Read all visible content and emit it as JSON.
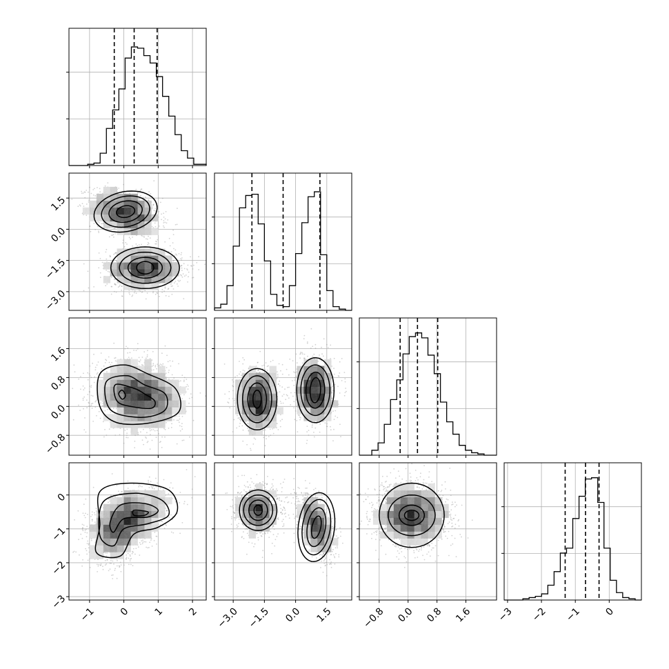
{
  "chart_data": {
    "type": "corner",
    "title": "",
    "parameters": [
      {
        "range": [
          -1.6,
          2.4
        ],
        "ticks": [
          -1,
          0,
          1,
          2
        ],
        "tick_labels": [
          "−1",
          "0",
          "1",
          "2"
        ],
        "quantiles": [
          -0.28,
          0.3,
          0.97
        ]
      },
      {
        "range": [
          -3.9,
          2.7
        ],
        "ticks": [
          -3.0,
          -1.5,
          0.0,
          1.5
        ],
        "tick_labels": [
          "−3.0",
          "−1.5",
          "0.0",
          "1.5"
        ],
        "quantiles": [
          -2.1,
          -0.6,
          1.17
        ]
      },
      {
        "range": [
          -1.35,
          2.45
        ],
        "ticks": [
          -0.8,
          0.0,
          0.8,
          1.6
        ],
        "tick_labels": [
          "−0.8",
          "0.0",
          "0.8",
          "1.6"
        ],
        "quantiles": [
          -0.22,
          0.26,
          0.82
        ]
      },
      {
        "range": [
          -3.1,
          0.95
        ],
        "ticks": [
          -3,
          -2,
          -1,
          0
        ],
        "tick_labels": [
          "−3",
          "−2",
          "−1",
          "0"
        ],
        "quantiles": [
          -1.3,
          -0.7,
          -0.3
        ]
      }
    ],
    "histograms": [
      [
        0,
        0,
        0,
        1,
        2,
        10,
        30,
        45,
        62,
        87,
        96,
        95,
        89,
        83,
        72,
        56,
        40,
        25,
        12,
        6,
        1,
        1
      ],
      [
        2,
        5,
        20,
        52,
        83,
        93,
        94,
        70,
        40,
        13,
        4,
        3,
        20,
        46,
        71,
        92,
        96,
        45,
        16,
        3,
        1,
        0
      ],
      [
        0,
        0,
        4,
        10,
        25,
        45,
        61,
        82,
        96,
        99,
        95,
        81,
        66,
        43,
        27,
        17,
        8,
        4,
        2,
        1,
        0,
        0
      ],
      [
        0,
        0,
        0,
        1,
        2,
        3,
        5,
        12,
        23,
        38,
        42,
        66,
        84,
        98,
        99,
        79,
        42,
        16,
        6,
        2,
        1,
        0
      ]
    ],
    "panels": [
      {
        "row": 1,
        "col": 0,
        "clusters": [
          {
            "cx": 0.05,
            "cy": 0.8,
            "sx": 0.5,
            "sy": 0.55,
            "rho": -0.3,
            "n": 1200
          },
          {
            "cx": 0.6,
            "cy": -1.9,
            "sx": 0.55,
            "sy": 0.5,
            "rho": 0.0,
            "n": 1200
          }
        ]
      },
      {
        "row": 2,
        "col": 0,
        "clusters": [
          {
            "cx": 0.2,
            "cy": 0.4,
            "sx": 0.55,
            "sy": 0.45,
            "rho": 0.0,
            "n": 1300
          },
          {
            "cx": 0.75,
            "cy": 0.15,
            "sx": 0.5,
            "sy": 0.4,
            "rho": 0.0,
            "n": 1100
          }
        ]
      },
      {
        "row": 2,
        "col": 1,
        "clusters": [
          {
            "cx": -1.8,
            "cy": 0.2,
            "sx": 0.5,
            "sy": 0.45,
            "rho": 0.0,
            "n": 1200
          },
          {
            "cx": 0.95,
            "cy": 0.45,
            "sx": 0.45,
            "sy": 0.45,
            "rho": 0.0,
            "n": 1200
          }
        ]
      },
      {
        "row": 2,
        "col": 2,
        "clusters": []
      },
      {
        "row": 3,
        "col": 0,
        "clusters": [
          {
            "cx": 0.3,
            "cy": -0.6,
            "sx": 0.55,
            "sy": 0.4,
            "rho": 0.4,
            "n": 1300
          },
          {
            "cx": -0.2,
            "cy": -1.1,
            "sx": 0.4,
            "sy": 0.45,
            "rho": 0.2,
            "n": 1000
          }
        ]
      },
      {
        "row": 3,
        "col": 1,
        "clusters": [
          {
            "cx": -1.8,
            "cy": -0.45,
            "sx": 0.5,
            "sy": 0.35,
            "rho": 0.0,
            "n": 1200
          },
          {
            "cx": 1.0,
            "cy": -0.9,
            "sx": 0.42,
            "sy": 0.45,
            "rho": -0.5,
            "n": 1200
          }
        ]
      },
      {
        "row": 3,
        "col": 2,
        "clusters": [
          {
            "cx": 0.1,
            "cy": -0.6,
            "sx": 0.5,
            "sy": 0.45,
            "rho": 0.0,
            "n": 2200
          }
        ]
      }
    ],
    "contour_panels": [
      {
        "row": 1,
        "col": 0,
        "shapes": [
          {
            "type": "ellipse",
            "cx": 0.05,
            "cy": 0.85,
            "rx": [
              0.25,
              0.45,
              0.65,
              0.85
            ],
            "ry": [
              0.3,
              0.55,
              0.8,
              1.05
            ],
            "rot": -35
          },
          {
            "type": "ellipse",
            "cx": 0.62,
            "cy": -1.85,
            "rx": [
              0.25,
              0.5,
              0.75,
              1.0
            ],
            "ry": [
              0.3,
              0.5,
              0.75,
              1.0
            ],
            "rot": 0
          }
        ]
      },
      {
        "row": 2,
        "col": 0,
        "shapes": [
          {
            "type": "poly",
            "levels": [
              [
                [
                  -0.05,
                  0.45
                ],
                [
                  0.05,
                  0.3
                ],
                [
                  -0.05,
                  0.2
                ],
                [
                  -0.15,
                  0.35
                ]
              ],
              [
                [
                  -0.25,
                  0.6
                ],
                [
                  0.3,
                  0.5
                ],
                [
                  0.6,
                  0.35
                ],
                [
                  0.9,
                  0.15
                ],
                [
                  0.8,
                  -0.05
                ],
                [
                  0.2,
                  0.0
                ],
                [
                  -0.2,
                  0.15
                ]
              ],
              [
                [
                  -0.5,
                  0.7
                ],
                [
                  0.1,
                  0.85
                ],
                [
                  0.6,
                  0.6
                ],
                [
                  1.2,
                  0.35
                ],
                [
                  1.2,
                  -0.1
                ],
                [
                  0.6,
                  -0.3
                ],
                [
                  -0.2,
                  -0.2
                ],
                [
                  -0.5,
                  0.1
                ]
              ],
              [
                [
                  -0.7,
                  0.9
                ],
                [
                  0.0,
                  1.15
                ],
                [
                  0.7,
                  0.9
                ],
                [
                  1.5,
                  0.5
                ],
                [
                  1.6,
                  -0.15
                ],
                [
                  0.8,
                  -0.45
                ],
                [
                  -0.2,
                  -0.45
                ],
                [
                  -0.7,
                  0.0
                ]
              ]
            ]
          }
        ]
      },
      {
        "row": 2,
        "col": 1,
        "shapes": [
          {
            "type": "ellipse",
            "cx": -1.85,
            "cy": 0.2,
            "rx": [
              0.2,
              0.45,
              0.7,
              0.95
            ],
            "ry": [
              0.25,
              0.45,
              0.65,
              0.85
            ],
            "rot": 0
          },
          {
            "type": "ellipse",
            "cx": 0.95,
            "cy": 0.45,
            "rx": [
              0.25,
              0.45,
              0.7,
              0.9
            ],
            "ry": [
              0.35,
              0.5,
              0.7,
              0.9
            ],
            "rot": -10
          }
        ]
      },
      {
        "row": 3,
        "col": 0,
        "shapes": [
          {
            "type": "poly",
            "levels": [
              [
                [
                  0.3,
                  -0.45
                ],
                [
                  0.7,
                  -0.5
                ],
                [
                  0.6,
                  -0.6
                ],
                [
                  0.3,
                  -0.6
                ]
              ],
              [
                [
                  -0.1,
                  -0.3
                ],
                [
                  0.6,
                  -0.25
                ],
                [
                  1.0,
                  -0.45
                ],
                [
                  0.7,
                  -0.65
                ],
                [
                  0.0,
                  -0.7
                ],
                [
                  -0.3,
                  -1.1
                ],
                [
                  -0.4,
                  -0.8
                ]
              ],
              [
                [
                  -0.6,
                  -0.2
                ],
                [
                  0.3,
                  0.05
                ],
                [
                  1.1,
                  -0.15
                ],
                [
                  1.3,
                  -0.6
                ],
                [
                  0.7,
                  -0.85
                ],
                [
                  0.0,
                  -1.0
                ],
                [
                  -0.3,
                  -1.5
                ],
                [
                  -0.7,
                  -1.2
                ]
              ],
              [
                [
                  -0.7,
                  0.1
                ],
                [
                  0.2,
                  0.35
                ],
                [
                  1.3,
                  0.15
                ],
                [
                  1.55,
                  -0.5
                ],
                [
                  1.0,
                  -0.95
                ],
                [
                  0.3,
                  -1.15
                ],
                [
                  -0.1,
                  -1.8
                ],
                [
                  -0.8,
                  -1.7
                ],
                [
                  -0.7,
                  -0.9
                ]
              ]
            ]
          }
        ]
      },
      {
        "row": 3,
        "col": 1,
        "shapes": [
          {
            "type": "ellipse",
            "cx": -1.8,
            "cy": -0.45,
            "rx": [
              0.2,
              0.45,
              0.7,
              0.9
            ],
            "ry": [
              0.15,
              0.3,
              0.45,
              0.6
            ],
            "rot": 0
          },
          {
            "type": "ellipse",
            "cx": 1.0,
            "cy": -0.95,
            "rx": [
              0.2,
              0.42,
              0.65,
              0.85
            ],
            "ry": [
              0.35,
              0.6,
              0.85,
              1.05
            ],
            "rot": -25
          }
        ]
      },
      {
        "row": 3,
        "col": 2,
        "shapes": [
          {
            "type": "ellipse",
            "cx": 0.1,
            "cy": -0.6,
            "rx": [
              0.2,
              0.35,
              0.65,
              0.9
            ],
            "ry": [
              0.15,
              0.3,
              0.6,
              0.95
            ],
            "rot": 0
          }
        ]
      }
    ],
    "xlabel": "",
    "ylabel": "",
    "grid": true
  }
}
